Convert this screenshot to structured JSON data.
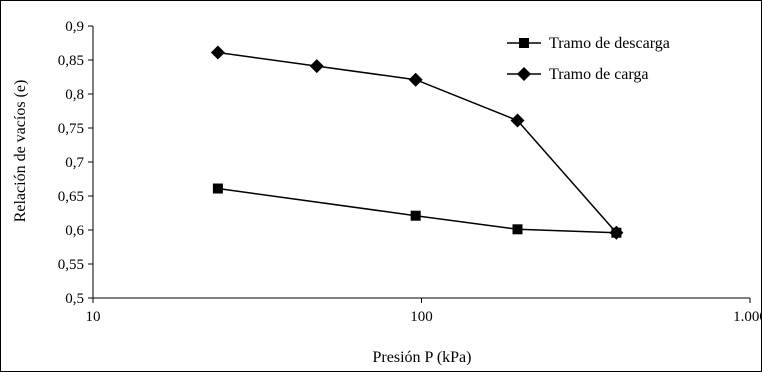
{
  "chart_data": {
    "type": "line",
    "title": "",
    "xlabel": "Presión P (kPa)",
    "ylabel": "Relación de vacíos (e)",
    "x_scale": "log",
    "xlim": [
      10,
      1000
    ],
    "ylim": [
      0.5,
      0.9
    ],
    "x_ticks": [
      10,
      100,
      1000
    ],
    "x_tick_labels": [
      "10",
      "100",
      "1.000"
    ],
    "y_ticks": [
      0.5,
      0.55,
      0.6,
      0.65,
      0.7,
      0.75,
      0.8,
      0.85,
      0.9
    ],
    "y_tick_labels": [
      "0,5",
      "0,55",
      "0,6",
      "0,65",
      "0,7",
      "0,75",
      "0,8",
      "0,85",
      "0,9"
    ],
    "grid": false,
    "legend_position": "top-right",
    "series": [
      {
        "name": "Tramo de descarga",
        "marker": "square",
        "color": "#000000",
        "x": [
          24,
          96,
          196,
          392
        ],
        "y": [
          0.661,
          0.621,
          0.601,
          0.596
        ]
      },
      {
        "name": "Tramo de carga",
        "marker": "diamond",
        "color": "#000000",
        "x": [
          24,
          48,
          96,
          196,
          392
        ],
        "y": [
          0.861,
          0.841,
          0.821,
          0.761,
          0.596
        ]
      }
    ]
  }
}
